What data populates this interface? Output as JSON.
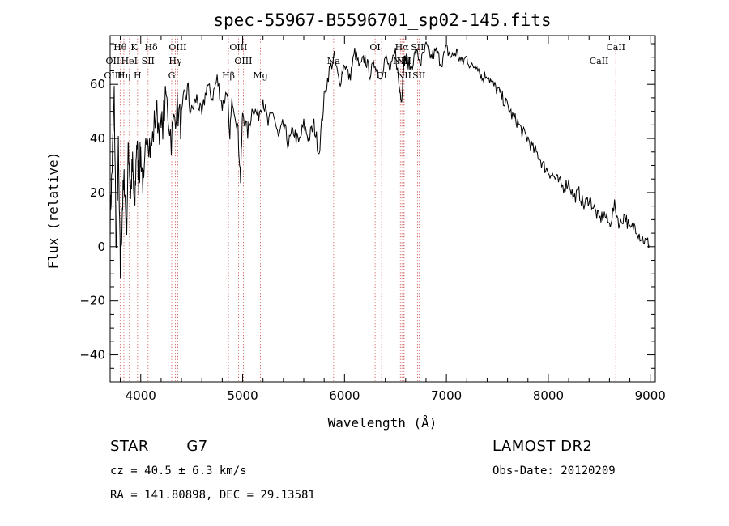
{
  "chart_data": {
    "type": "line",
    "title": "spec-55967-B5596701_sp02-145.fits",
    "xlabel": "Wavelength (Å)",
    "ylabel": "Flux (relative)",
    "xlim": [
      3700,
      9050
    ],
    "ylim": [
      -50,
      78
    ],
    "xticks": [
      4000,
      5000,
      6000,
      7000,
      8000,
      9000
    ],
    "yticks": [
      -40,
      -20,
      0,
      20,
      40,
      60
    ],
    "series": [
      {
        "x": [
          3700,
          3720,
          3740,
          3760,
          3780,
          3800,
          3820,
          3840,
          3860,
          3880,
          3900,
          3920,
          3940,
          3960,
          3980,
          4000,
          4030,
          4060,
          4100,
          4150,
          4200,
          4250,
          4300,
          4350,
          4400,
          4450,
          4500,
          4550,
          4600,
          4650,
          4700,
          4750,
          4800,
          4850,
          4870,
          4900,
          4950,
          4980,
          5000,
          5050,
          5100,
          5150,
          5200,
          5250,
          5300,
          5350,
          5400,
          5450,
          5500,
          5550,
          5600,
          5650,
          5700,
          5750,
          5800,
          5850,
          5900,
          5950,
          6000,
          6050,
          6100,
          6150,
          6200,
          6250,
          6300,
          6350,
          6400,
          6450,
          6500,
          6540,
          6563,
          6580,
          6600,
          6650,
          6700,
          6750,
          6800,
          6850,
          6900,
          6950,
          7000,
          7050,
          7100,
          7150,
          7200,
          7250,
          7300,
          7350,
          7400,
          7450,
          7500,
          7550,
          7600,
          7650,
          7700,
          7750,
          7800,
          7850,
          7900,
          7950,
          8000,
          8050,
          8100,
          8150,
          8200,
          8250,
          8300,
          8350,
          8400,
          8450,
          8500,
          8550,
          8600,
          8650,
          8700,
          8750,
          8800,
          8850,
          8900,
          8950,
          9000
        ],
        "y": [
          10,
          30,
          55,
          -3,
          35,
          -10,
          15,
          25,
          5,
          38,
          20,
          30,
          12,
          40,
          25,
          35,
          20,
          45,
          35,
          50,
          42,
          55,
          40,
          52,
          45,
          58,
          50,
          55,
          48,
          60,
          55,
          62,
          52,
          58,
          40,
          55,
          45,
          25,
          50,
          42,
          52,
          48,
          55,
          45,
          50,
          40,
          45,
          38,
          43,
          38,
          45,
          40,
          45,
          35,
          55,
          65,
          70,
          60,
          68,
          62,
          72,
          66,
          70,
          64,
          68,
          62,
          70,
          65,
          72,
          58,
          55,
          68,
          70,
          66,
          72,
          68,
          74,
          70,
          72,
          68,
          73,
          70,
          72,
          68,
          70,
          66,
          68,
          62,
          64,
          60,
          58,
          55,
          52,
          48,
          46,
          42,
          40,
          36,
          34,
          30,
          28,
          26,
          24,
          22,
          24,
          18,
          20,
          15,
          18,
          14,
          10,
          12,
          8,
          15,
          8,
          12,
          6,
          8,
          4,
          2,
          1
        ]
      }
    ],
    "spectral_lines": [
      {
        "label": "Hθ",
        "x": 3798,
        "row": 0
      },
      {
        "label": "K",
        "x": 3934,
        "row": 0
      },
      {
        "label": "Hδ",
        "x": 4102,
        "row": 0
      },
      {
        "label": "OIII",
        "x": 4363,
        "row": 0
      },
      {
        "label": "OIII",
        "x": 4959,
        "row": 0
      },
      {
        "label": "OI",
        "x": 6300,
        "row": 0
      },
      {
        "label": "Hα",
        "x": 6563,
        "row": 0
      },
      {
        "label": "SII",
        "x": 6716,
        "row": 0
      },
      {
        "label": "CaII",
        "x": 8662,
        "row": 0
      },
      {
        "label": "OII",
        "x": 3727,
        "row": 1
      },
      {
        "label": "HeI",
        "x": 3889,
        "row": 1
      },
      {
        "label": "SII",
        "x": 4072,
        "row": 1
      },
      {
        "label": "Hγ",
        "x": 4340,
        "row": 1
      },
      {
        "label": "OIII",
        "x": 5007,
        "row": 1
      },
      {
        "label": "Na",
        "x": 5893,
        "row": 1
      },
      {
        "label": "NII",
        "x": 6548,
        "row": 1
      },
      {
        "label": "NII",
        "x": 6584,
        "row": 1
      },
      {
        "label": "CaII",
        "x": 8498,
        "row": 1
      },
      {
        "label": "OIII",
        "x": 3727,
        "row": 2
      },
      {
        "label": "Hη",
        "x": 3835,
        "row": 2
      },
      {
        "label": "H",
        "x": 3969,
        "row": 2
      },
      {
        "label": "G",
        "x": 4304,
        "row": 2
      },
      {
        "label": "Hβ",
        "x": 4861,
        "row": 2
      },
      {
        "label": "Mg",
        "x": 5175,
        "row": 2
      },
      {
        "label": "OI",
        "x": 6364,
        "row": 2
      },
      {
        "label": "NII",
        "x": 6584,
        "row": 2
      },
      {
        "label": "SII",
        "x": 6731,
        "row": 2
      }
    ]
  },
  "info": {
    "class": "STAR",
    "subclass": "G7",
    "survey": "LAMOST DR2",
    "cz": "cz = 40.5 ± 6.3 km/s",
    "obsdate": "Obs-Date: 20120209",
    "radec": "RA = 141.80898, DEC =  29.13581"
  }
}
